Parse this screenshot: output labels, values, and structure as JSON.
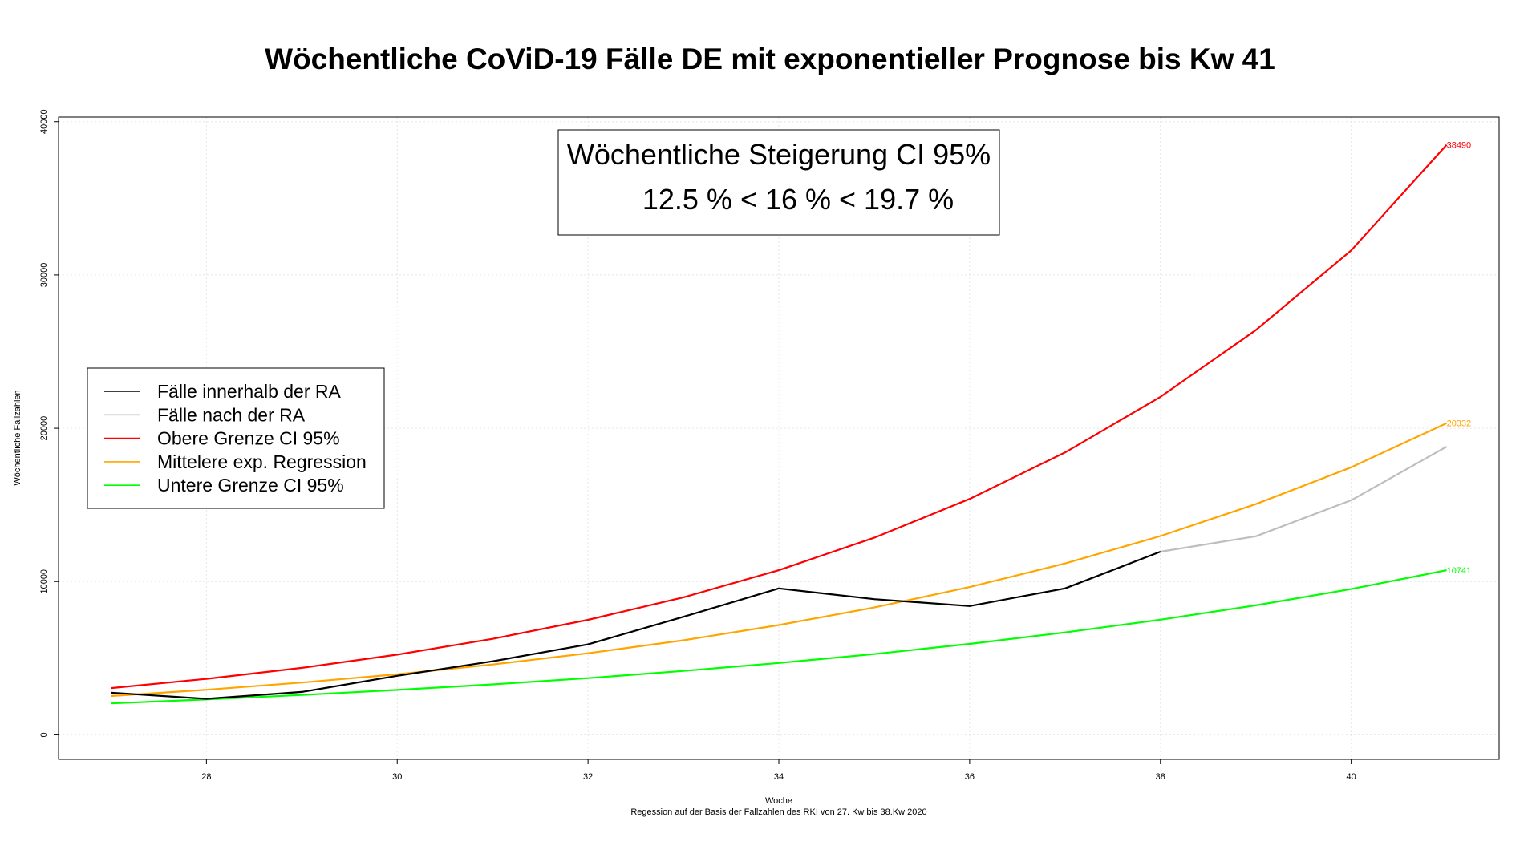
{
  "chart_data": {
    "type": "line",
    "title": "Wöchentliche CoViD-19 Fälle DE mit exponentieller Prognose bis Kw 41",
    "xlabel": "Woche",
    "subtitle": "Regession auf der Basis der Fallzahlen des RKI von 27. Kw bis 38.Kw 2020",
    "ylabel": "Wöchentliche Fallzahlen",
    "xlim": [
      26.45,
      41.55
    ],
    "ylim": [
      -1600,
      40300
    ],
    "xticks": [
      "28",
      "30",
      "32",
      "34",
      "36",
      "38",
      "40"
    ],
    "yticks": [
      "0",
      "10000",
      "20000",
      "30000",
      "40000"
    ],
    "grid": true,
    "info_box": {
      "line1": "Wöchentliche Steigerung CI 95%",
      "line2": "12.5 % < 16 % < 19.7 %"
    },
    "legend_position": "left",
    "series": [
      {
        "name": "Fälle innerhalb der RA",
        "color": "#000000",
        "x": [
          27,
          28,
          29,
          30,
          31,
          32,
          33,
          34,
          35,
          36,
          37,
          38
        ],
        "y": [
          2750,
          2350,
          2800,
          3850,
          4800,
          5900,
          7700,
          9550,
          8850,
          8400,
          9550,
          11950
        ]
      },
      {
        "name": "Fälle nach der RA",
        "color": "#bebebe",
        "x": [
          38,
          39,
          40,
          41
        ],
        "y": [
          11950,
          12950,
          15300,
          18800
        ]
      },
      {
        "name": "Obere Grenze CI 95%",
        "color": "#ff0000",
        "x": [
          27,
          28,
          29,
          30,
          31,
          32,
          33,
          34,
          35,
          36,
          37,
          38,
          39,
          40,
          41
        ],
        "y": [
          3050,
          3650,
          4370,
          5230,
          6260,
          7500,
          8970,
          10740,
          12860,
          15390,
          18420,
          22050,
          26400,
          31600,
          38490
        ],
        "end_label": "38490"
      },
      {
        "name": "Mittelere exp. Regression",
        "color": "#ffa500",
        "x": [
          27,
          28,
          29,
          30,
          31,
          32,
          33,
          34,
          35,
          36,
          37,
          38,
          39,
          40,
          41
        ],
        "y": [
          2530,
          2940,
          3410,
          3950,
          4590,
          5320,
          6170,
          7160,
          8310,
          9640,
          11180,
          12970,
          15050,
          17450,
          20332
        ],
        "end_label": "20332"
      },
      {
        "name": "Untere Grenze CI  95%",
        "color": "#00ff00",
        "x": [
          27,
          28,
          29,
          30,
          31,
          32,
          33,
          34,
          35,
          36,
          37,
          38,
          39,
          40,
          41
        ],
        "y": [
          2050,
          2310,
          2600,
          2930,
          3290,
          3700,
          4170,
          4690,
          5270,
          5930,
          6680,
          7510,
          8450,
          9510,
          10741
        ],
        "end_label": "10741"
      }
    ]
  }
}
